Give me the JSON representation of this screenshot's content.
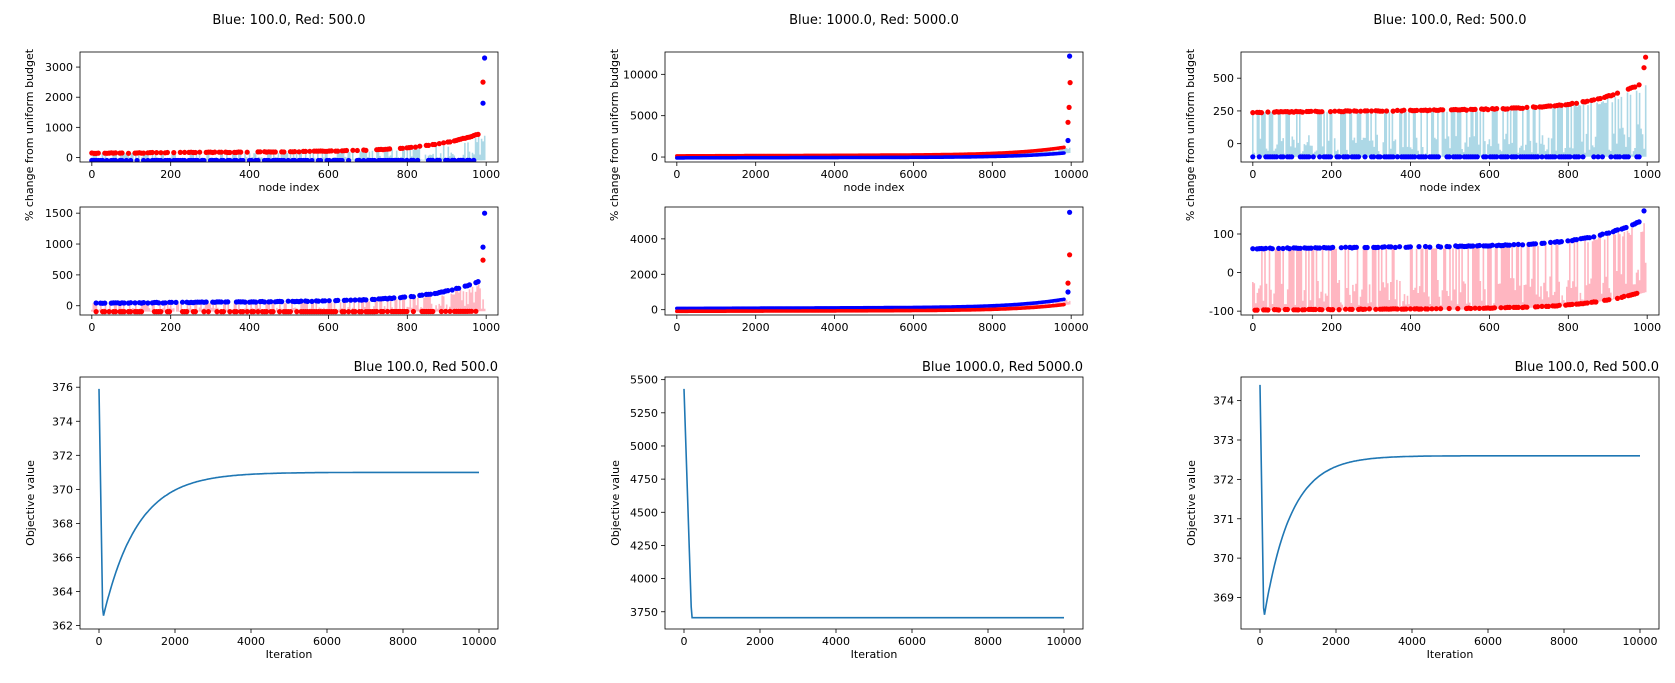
{
  "colors": {
    "blue": "#0000ff",
    "red": "#ff0000",
    "light_blue": "#add8e6",
    "pink": "#ffb6c1",
    "line": "#1f77b4"
  },
  "chart_data": [
    {
      "id": "c1t",
      "type": "scatter",
      "title": "Blue: 100.0, Red: 500.0",
      "title_pos": "center",
      "xlabel": "node index",
      "ylabel": "% change from uniform budget",
      "xlim": [
        -30,
        1030
      ],
      "ylim": [
        -150,
        3500
      ],
      "xticks": [
        0,
        200,
        400,
        600,
        800,
        1000
      ],
      "yticks": [
        0,
        1000,
        2000,
        3000
      ],
      "fill_color": "light_blue",
      "n": 1000,
      "series": [
        {
          "name": "red",
          "color": "red",
          "start": 140,
          "end": 800,
          "extra": [
            2500
          ],
          "sparse": true
        },
        {
          "name": "blue",
          "color": "blue",
          "start": -100,
          "end": -95,
          "extra": [
            1800,
            3300
          ],
          "sparse": true
        }
      ]
    },
    {
      "id": "c1b",
      "type": "scatter",
      "title": "",
      "title_pos": "center",
      "xlabel": "",
      "ylabel": "",
      "xlim": [
        -30,
        1030
      ],
      "ylim": [
        -150,
        1600
      ],
      "xticks": [
        0,
        200,
        400,
        600,
        800,
        1000
      ],
      "yticks": [
        0,
        500,
        1000,
        1500
      ],
      "fill_color": "pink",
      "n": 1000,
      "series": [
        {
          "name": "blue",
          "color": "blue",
          "start": 40,
          "end": 400,
          "extra": [
            950,
            1500
          ],
          "sparse": true
        },
        {
          "name": "red",
          "color": "red",
          "start": -95,
          "end": -90,
          "extra": [
            740
          ],
          "sparse": true
        }
      ]
    },
    {
      "id": "c2t",
      "type": "scatter",
      "title": "Blue: 1000.0, Red: 5000.0",
      "title_pos": "center",
      "xlabel": "node index",
      "ylabel": "% change from uniform budget",
      "xlim": [
        -300,
        10300
      ],
      "ylim": [
        -600,
        12700
      ],
      "xticks": [
        0,
        2000,
        4000,
        6000,
        8000,
        10000
      ],
      "yticks": [
        0,
        5000,
        10000
      ],
      "fill_color": "light_blue",
      "n": 10000,
      "series": [
        {
          "name": "red",
          "color": "red",
          "start": 140,
          "end": 1200,
          "extra": [
            4200,
            6000,
            9000
          ],
          "sparse": false
        },
        {
          "name": "blue",
          "color": "blue",
          "start": -100,
          "end": 500,
          "extra": [
            2000,
            12200
          ],
          "sparse": false
        }
      ]
    },
    {
      "id": "c2b",
      "type": "scatter",
      "title": "",
      "title_pos": "center",
      "xlabel": "",
      "ylabel": "",
      "xlim": [
        -300,
        10300
      ],
      "ylim": [
        -300,
        5800
      ],
      "xticks": [
        0,
        2000,
        4000,
        6000,
        8000,
        10000
      ],
      "yticks": [
        0,
        2000,
        4000
      ],
      "fill_color": "pink",
      "n": 10000,
      "series": [
        {
          "name": "blue",
          "color": "blue",
          "start": 70,
          "end": 600,
          "extra": [
            1000,
            5500
          ],
          "sparse": false
        },
        {
          "name": "red",
          "color": "red",
          "start": -90,
          "end": 300,
          "extra": [
            1500,
            3100
          ],
          "sparse": false
        }
      ]
    },
    {
      "id": "c3t",
      "type": "scatter",
      "title": "Blue: 100.0, Red: 500.0",
      "title_pos": "center",
      "xlabel": "node index",
      "ylabel": "% change from uniform budget",
      "xlim": [
        -30,
        1030
      ],
      "ylim": [
        -140,
        700
      ],
      "xticks": [
        0,
        200,
        400,
        600,
        800,
        1000
      ],
      "yticks": [
        0,
        250,
        500
      ],
      "fill_color": "light_blue",
      "n": 1000,
      "series": [
        {
          "name": "red",
          "color": "red",
          "start": 240,
          "end": 460,
          "extra": [
            580,
            660
          ],
          "sparse": true
        },
        {
          "name": "blue",
          "color": "blue",
          "start": -100,
          "end": -100,
          "extra": [],
          "sparse": true
        }
      ]
    },
    {
      "id": "c3b",
      "type": "scatter",
      "title": "",
      "title_pos": "center",
      "xlabel": "",
      "ylabel": "",
      "xlim": [
        -30,
        1030
      ],
      "ylim": [
        -110,
        170
      ],
      "xticks": [
        0,
        200,
        400,
        600,
        800,
        1000
      ],
      "yticks": [
        -100,
        0,
        100
      ],
      "fill_color": "pink",
      "n": 1000,
      "series": [
        {
          "name": "blue",
          "color": "blue",
          "start": 62,
          "end": 135,
          "extra": [
            160
          ],
          "sparse": true
        },
        {
          "name": "red",
          "color": "red",
          "start": -97,
          "end": -50,
          "extra": [],
          "sparse": true
        }
      ]
    },
    {
      "id": "c1o",
      "type": "line",
      "title": "Blue 100.0, Red 500.0",
      "title_pos": "right",
      "xlabel": "Iteration",
      "ylabel": "Objective value",
      "xlim": [
        -500,
        10500
      ],
      "ylim": [
        361.8,
        376.6
      ],
      "xticks": [
        0,
        2000,
        4000,
        6000,
        8000,
        10000
      ],
      "yticks": [
        362,
        364,
        366,
        368,
        370,
        372,
        374,
        376
      ],
      "curve": {
        "start": 375.9,
        "min": 362.4,
        "min_at": 100,
        "final": 371.0,
        "tau": 900
      },
      "x_max": 10000
    },
    {
      "id": "c2o",
      "type": "line",
      "title": "Blue 1000.0, Red 5000.0",
      "title_pos": "right",
      "xlabel": "Iteration",
      "ylabel": "Objective value",
      "xlim": [
        -500,
        10500
      ],
      "ylim": [
        3620,
        5520
      ],
      "xticks": [
        0,
        2000,
        4000,
        6000,
        8000,
        10000
      ],
      "yticks": [
        3750,
        4000,
        4250,
        4500,
        4750,
        5000,
        5250,
        5500
      ],
      "curve": {
        "start": 5430,
        "min": 3705,
        "min_at": 200,
        "final": 3705,
        "tau": 40
      },
      "x_max": 10000
    },
    {
      "id": "c3o",
      "type": "line",
      "title": "Blue 100.0, Red 500.0",
      "title_pos": "right",
      "xlabel": "Iteration",
      "ylabel": "Objective value",
      "xlim": [
        -500,
        10500
      ],
      "ylim": [
        368.2,
        374.6
      ],
      "xticks": [
        0,
        2000,
        4000,
        6000,
        8000,
        10000
      ],
      "yticks": [
        369,
        370,
        371,
        372,
        373,
        374
      ],
      "curve": {
        "start": 374.4,
        "min": 368.45,
        "min_at": 100,
        "final": 372.6,
        "tau": 700
      },
      "x_max": 10000
    }
  ]
}
